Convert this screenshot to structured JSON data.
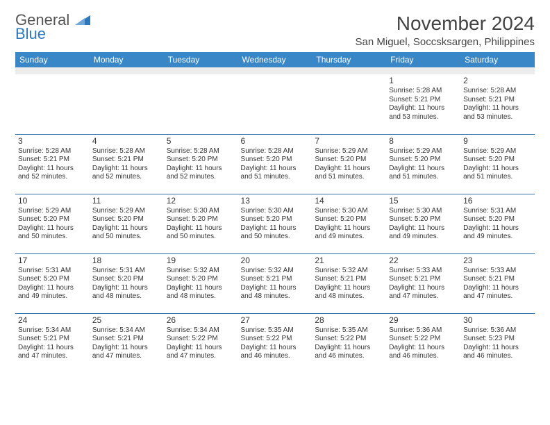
{
  "brand": {
    "first": "General",
    "second": "Blue"
  },
  "title": "November 2024",
  "location": "San Miguel, Soccsksargen, Philippines",
  "colors": {
    "header_bg": "#3a87c7",
    "header_text": "#ffffff",
    "row_divider": "#2e6fa8",
    "blank_row_bg": "#ececec",
    "body_text": "#333333",
    "brand_accent": "#2e78bd"
  },
  "weekdays": [
    "Sunday",
    "Monday",
    "Tuesday",
    "Wednesday",
    "Thursday",
    "Friday",
    "Saturday"
  ],
  "weeks": [
    [
      null,
      null,
      null,
      null,
      null,
      {
        "d": "1",
        "sr": "Sunrise: 5:28 AM",
        "ss": "Sunset: 5:21 PM",
        "dl1": "Daylight: 11 hours",
        "dl2": "and 53 minutes."
      },
      {
        "d": "2",
        "sr": "Sunrise: 5:28 AM",
        "ss": "Sunset: 5:21 PM",
        "dl1": "Daylight: 11 hours",
        "dl2": "and 53 minutes."
      }
    ],
    [
      {
        "d": "3",
        "sr": "Sunrise: 5:28 AM",
        "ss": "Sunset: 5:21 PM",
        "dl1": "Daylight: 11 hours",
        "dl2": "and 52 minutes."
      },
      {
        "d": "4",
        "sr": "Sunrise: 5:28 AM",
        "ss": "Sunset: 5:21 PM",
        "dl1": "Daylight: 11 hours",
        "dl2": "and 52 minutes."
      },
      {
        "d": "5",
        "sr": "Sunrise: 5:28 AM",
        "ss": "Sunset: 5:20 PM",
        "dl1": "Daylight: 11 hours",
        "dl2": "and 52 minutes."
      },
      {
        "d": "6",
        "sr": "Sunrise: 5:28 AM",
        "ss": "Sunset: 5:20 PM",
        "dl1": "Daylight: 11 hours",
        "dl2": "and 51 minutes."
      },
      {
        "d": "7",
        "sr": "Sunrise: 5:29 AM",
        "ss": "Sunset: 5:20 PM",
        "dl1": "Daylight: 11 hours",
        "dl2": "and 51 minutes."
      },
      {
        "d": "8",
        "sr": "Sunrise: 5:29 AM",
        "ss": "Sunset: 5:20 PM",
        "dl1": "Daylight: 11 hours",
        "dl2": "and 51 minutes."
      },
      {
        "d": "9",
        "sr": "Sunrise: 5:29 AM",
        "ss": "Sunset: 5:20 PM",
        "dl1": "Daylight: 11 hours",
        "dl2": "and 51 minutes."
      }
    ],
    [
      {
        "d": "10",
        "sr": "Sunrise: 5:29 AM",
        "ss": "Sunset: 5:20 PM",
        "dl1": "Daylight: 11 hours",
        "dl2": "and 50 minutes."
      },
      {
        "d": "11",
        "sr": "Sunrise: 5:29 AM",
        "ss": "Sunset: 5:20 PM",
        "dl1": "Daylight: 11 hours",
        "dl2": "and 50 minutes."
      },
      {
        "d": "12",
        "sr": "Sunrise: 5:30 AM",
        "ss": "Sunset: 5:20 PM",
        "dl1": "Daylight: 11 hours",
        "dl2": "and 50 minutes."
      },
      {
        "d": "13",
        "sr": "Sunrise: 5:30 AM",
        "ss": "Sunset: 5:20 PM",
        "dl1": "Daylight: 11 hours",
        "dl2": "and 50 minutes."
      },
      {
        "d": "14",
        "sr": "Sunrise: 5:30 AM",
        "ss": "Sunset: 5:20 PM",
        "dl1": "Daylight: 11 hours",
        "dl2": "and 49 minutes."
      },
      {
        "d": "15",
        "sr": "Sunrise: 5:30 AM",
        "ss": "Sunset: 5:20 PM",
        "dl1": "Daylight: 11 hours",
        "dl2": "and 49 minutes."
      },
      {
        "d": "16",
        "sr": "Sunrise: 5:31 AM",
        "ss": "Sunset: 5:20 PM",
        "dl1": "Daylight: 11 hours",
        "dl2": "and 49 minutes."
      }
    ],
    [
      {
        "d": "17",
        "sr": "Sunrise: 5:31 AM",
        "ss": "Sunset: 5:20 PM",
        "dl1": "Daylight: 11 hours",
        "dl2": "and 49 minutes."
      },
      {
        "d": "18",
        "sr": "Sunrise: 5:31 AM",
        "ss": "Sunset: 5:20 PM",
        "dl1": "Daylight: 11 hours",
        "dl2": "and 48 minutes."
      },
      {
        "d": "19",
        "sr": "Sunrise: 5:32 AM",
        "ss": "Sunset: 5:20 PM",
        "dl1": "Daylight: 11 hours",
        "dl2": "and 48 minutes."
      },
      {
        "d": "20",
        "sr": "Sunrise: 5:32 AM",
        "ss": "Sunset: 5:21 PM",
        "dl1": "Daylight: 11 hours",
        "dl2": "and 48 minutes."
      },
      {
        "d": "21",
        "sr": "Sunrise: 5:32 AM",
        "ss": "Sunset: 5:21 PM",
        "dl1": "Daylight: 11 hours",
        "dl2": "and 48 minutes."
      },
      {
        "d": "22",
        "sr": "Sunrise: 5:33 AM",
        "ss": "Sunset: 5:21 PM",
        "dl1": "Daylight: 11 hours",
        "dl2": "and 47 minutes."
      },
      {
        "d": "23",
        "sr": "Sunrise: 5:33 AM",
        "ss": "Sunset: 5:21 PM",
        "dl1": "Daylight: 11 hours",
        "dl2": "and 47 minutes."
      }
    ],
    [
      {
        "d": "24",
        "sr": "Sunrise: 5:34 AM",
        "ss": "Sunset: 5:21 PM",
        "dl1": "Daylight: 11 hours",
        "dl2": "and 47 minutes."
      },
      {
        "d": "25",
        "sr": "Sunrise: 5:34 AM",
        "ss": "Sunset: 5:21 PM",
        "dl1": "Daylight: 11 hours",
        "dl2": "and 47 minutes."
      },
      {
        "d": "26",
        "sr": "Sunrise: 5:34 AM",
        "ss": "Sunset: 5:22 PM",
        "dl1": "Daylight: 11 hours",
        "dl2": "and 47 minutes."
      },
      {
        "d": "27",
        "sr": "Sunrise: 5:35 AM",
        "ss": "Sunset: 5:22 PM",
        "dl1": "Daylight: 11 hours",
        "dl2": "and 46 minutes."
      },
      {
        "d": "28",
        "sr": "Sunrise: 5:35 AM",
        "ss": "Sunset: 5:22 PM",
        "dl1": "Daylight: 11 hours",
        "dl2": "and 46 minutes."
      },
      {
        "d": "29",
        "sr": "Sunrise: 5:36 AM",
        "ss": "Sunset: 5:22 PM",
        "dl1": "Daylight: 11 hours",
        "dl2": "and 46 minutes."
      },
      {
        "d": "30",
        "sr": "Sunrise: 5:36 AM",
        "ss": "Sunset: 5:23 PM",
        "dl1": "Daylight: 11 hours",
        "dl2": "and 46 minutes."
      }
    ]
  ]
}
